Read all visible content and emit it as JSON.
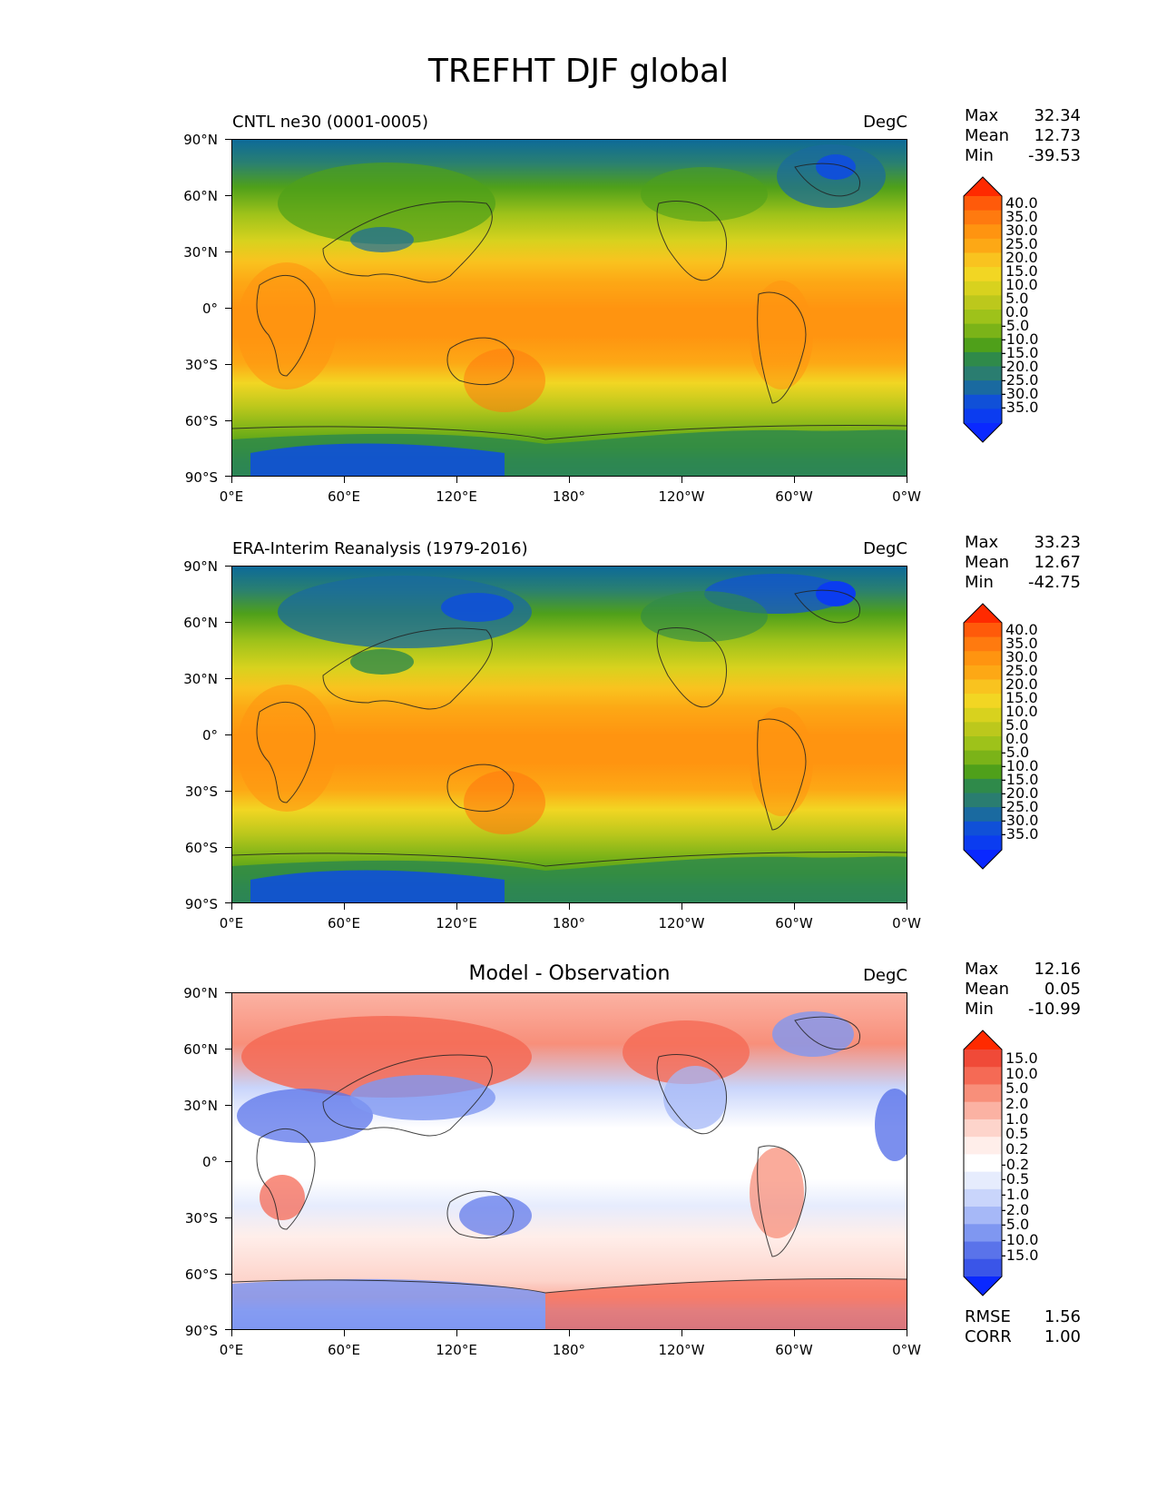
{
  "figure_title": "TREFHT DJF global",
  "lat_labels": [
    "90°N",
    "60°N",
    "30°N",
    "0°",
    "30°S",
    "60°S",
    "90°S"
  ],
  "lon_labels": [
    "0°E",
    "60°E",
    "120°E",
    "180°",
    "120°W",
    "60°W",
    "0°W"
  ],
  "panels": [
    {
      "title": "CNTL ne30 (0001-0005)",
      "units": "DegC",
      "stats": [
        {
          "label": "Max",
          "value": "32.34"
        },
        {
          "label": "Mean",
          "value": "12.73"
        },
        {
          "label": "Min",
          "value": "-39.53"
        }
      ],
      "colorbar_labels": [
        "40.0",
        "35.0",
        "30.0",
        "25.0",
        "20.0",
        "15.0",
        "10.0",
        "5.0",
        "0.0",
        "-5.0",
        "-10.0",
        "-15.0",
        "-20.0",
        "-25.0",
        "-30.0",
        "-35.0"
      ]
    },
    {
      "title": "ERA-Interim Reanalysis (1979-2016)",
      "units": "DegC",
      "stats": [
        {
          "label": "Max",
          "value": "33.23"
        },
        {
          "label": "Mean",
          "value": "12.67"
        },
        {
          "label": "Min",
          "value": "-42.75"
        }
      ],
      "colorbar_labels": [
        "40.0",
        "35.0",
        "30.0",
        "25.0",
        "20.0",
        "15.0",
        "10.0",
        "5.0",
        "0.0",
        "-5.0",
        "-10.0",
        "-15.0",
        "-20.0",
        "-25.0",
        "-30.0",
        "-35.0"
      ]
    },
    {
      "title": "Model - Observation",
      "units": "DegC",
      "stats": [
        {
          "label": "Max",
          "value": "12.16"
        },
        {
          "label": "Mean",
          "value": "0.05"
        },
        {
          "label": "Min",
          "value": "-10.99"
        }
      ],
      "colorbar_labels": [
        "15.0",
        "10.0",
        "5.0",
        "2.0",
        "1.0",
        "0.5",
        "0.2",
        "-0.2",
        "-0.5",
        "-1.0",
        "-2.0",
        "-5.0",
        "-10.0",
        "-15.0"
      ],
      "metrics": [
        {
          "label": "RMSE",
          "value": "1.56"
        },
        {
          "label": "CORR",
          "value": "1.00"
        }
      ]
    }
  ],
  "colors": {
    "temp_scale": [
      "#ff2a00",
      "#ff5a0a",
      "#ff7a0f",
      "#ff9410",
      "#fda815",
      "#f9c31f",
      "#f2d623",
      "#d8d21e",
      "#bcc81c",
      "#9ec21a",
      "#7bb318",
      "#4fa01a",
      "#2f8a4a",
      "#2a7d70",
      "#1a6aa0",
      "#1050d8",
      "#0b3cf0",
      "#0a28ff"
    ],
    "diff_scale": [
      "#ff2a00",
      "#f04a38",
      "#f56a55",
      "#f88f7a",
      "#fbb2a3",
      "#fdd4cb",
      "#ffeeea",
      "#ffffff",
      "#e6ecfd",
      "#c9d5fb",
      "#a6b8f7",
      "#7f97f1",
      "#5a73ea",
      "#3a55e8",
      "#0a28ff"
    ]
  },
  "chart_data": [
    {
      "type": "heatmap",
      "title": "CNTL ne30 (0001-0005)",
      "units": "DegC",
      "xlabel": "",
      "ylabel": "",
      "xlim": [
        0,
        360
      ],
      "ylim": [
        -90,
        90
      ],
      "x_ticks": [
        "0°E",
        "60°E",
        "120°E",
        "180°",
        "120°W",
        "60°W",
        "0°W"
      ],
      "y_ticks": [
        "90°N",
        "60°N",
        "30°N",
        "0°",
        "30°S",
        "60°S",
        "90°S"
      ],
      "colorbar_levels": [
        -35,
        -30,
        -25,
        -20,
        -15,
        -10,
        -5,
        0,
        5,
        10,
        15,
        20,
        25,
        30,
        35,
        40
      ],
      "colorbar_extend": "both",
      "stats": {
        "max": 32.34,
        "mean": 12.73,
        "min": -39.53
      }
    },
    {
      "type": "heatmap",
      "title": "ERA-Interim Reanalysis (1979-2016)",
      "units": "DegC",
      "xlabel": "",
      "ylabel": "",
      "xlim": [
        0,
        360
      ],
      "ylim": [
        -90,
        90
      ],
      "x_ticks": [
        "0°E",
        "60°E",
        "120°E",
        "180°",
        "120°W",
        "60°W",
        "0°W"
      ],
      "y_ticks": [
        "90°N",
        "60°N",
        "30°N",
        "0°",
        "30°S",
        "60°S",
        "90°S"
      ],
      "colorbar_levels": [
        -35,
        -30,
        -25,
        -20,
        -15,
        -10,
        -5,
        0,
        5,
        10,
        15,
        20,
        25,
        30,
        35,
        40
      ],
      "colorbar_extend": "both",
      "stats": {
        "max": 33.23,
        "mean": 12.67,
        "min": -42.75
      }
    },
    {
      "type": "heatmap",
      "title": "Model - Observation",
      "units": "DegC",
      "xlabel": "",
      "ylabel": "",
      "xlim": [
        0,
        360
      ],
      "ylim": [
        -90,
        90
      ],
      "x_ticks": [
        "0°E",
        "60°E",
        "120°E",
        "180°",
        "120°W",
        "60°W",
        "0°W"
      ],
      "y_ticks": [
        "90°N",
        "60°N",
        "30°N",
        "0°",
        "30°S",
        "60°S",
        "90°S"
      ],
      "colorbar_levels": [
        -15,
        -10,
        -5,
        -2,
        -1,
        -0.5,
        -0.2,
        0.2,
        0.5,
        1,
        2,
        5,
        10,
        15
      ],
      "colorbar_extend": "both",
      "stats": {
        "max": 12.16,
        "mean": 0.05,
        "min": -10.99
      },
      "metrics": {
        "rmse": 1.56,
        "corr": 1.0
      }
    }
  ]
}
